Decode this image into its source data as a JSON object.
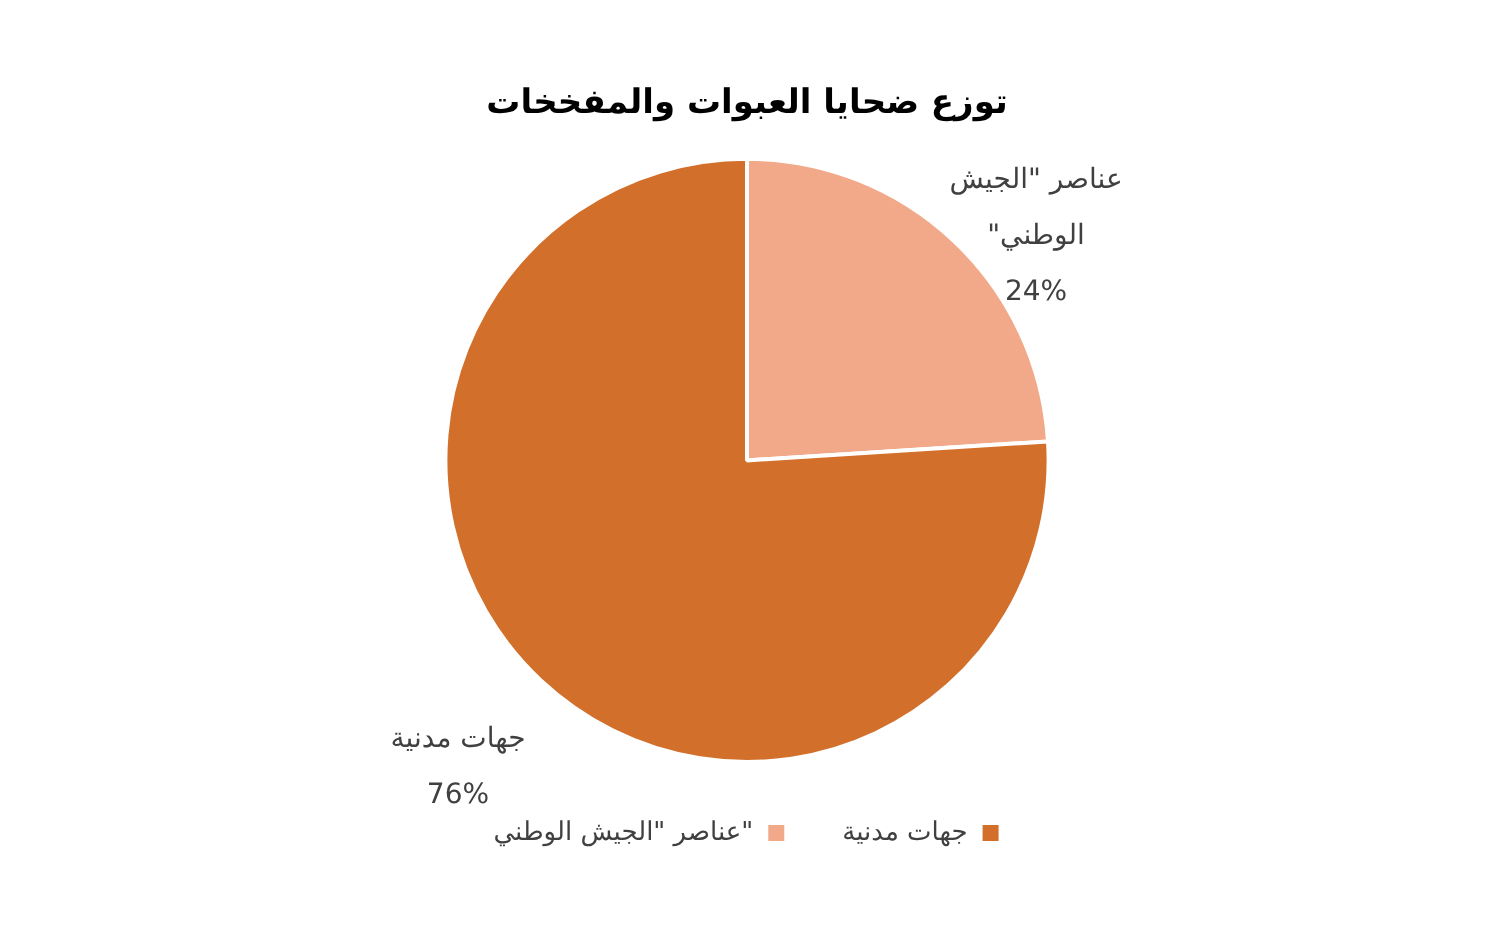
{
  "chart_data": {
    "type": "pie",
    "title": "توزع ضحايا العبوات والمفخخات",
    "categories": [
      "عناصر \"الجيش الوطني\"",
      "جهات مدنية"
    ],
    "values": [
      24,
      76
    ],
    "colors": [
      "#f2a98a",
      "#d26f2b"
    ],
    "value_labels": [
      "24%",
      "76%"
    ],
    "legend": "bottom"
  }
}
